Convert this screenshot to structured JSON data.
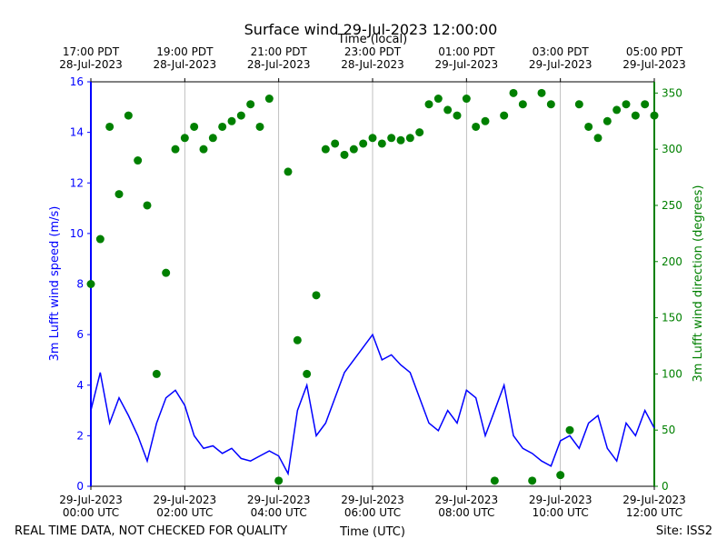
{
  "chart_data": {
    "type": "line-scatter",
    "title": "Surface wind 29-Jul-2023 12:00:00",
    "xlabel": "Time (UTC)",
    "top_xlabel": "Time (local)",
    "ylabel": "3m Lufft wind speed (m/s)",
    "y2label": "3m Lufft wind direction (degrees)",
    "footer_left": "REAL TIME DATA, NOT CHECKED FOR QUALITY",
    "footer_right": "Site: ISS2",
    "xlim": [
      0,
      12
    ],
    "xticks": [
      {
        "value": 0,
        "label": "29-Jul-2023\n00:00 UTC"
      },
      {
        "value": 2,
        "label": "29-Jul-2023\n02:00 UTC"
      },
      {
        "value": 4,
        "label": "29-Jul-2023\n04:00 UTC"
      },
      {
        "value": 6,
        "label": "29-Jul-2023\n06:00 UTC"
      },
      {
        "value": 8,
        "label": "29-Jul-2023\n08:00 UTC"
      },
      {
        "value": 10,
        "label": "29-Jul-2023\n10:00 UTC"
      },
      {
        "value": 12,
        "label": "29-Jul-2023\n12:00 UTC"
      }
    ],
    "top_xticks": [
      {
        "value": 0,
        "label": "17:00 PDT\n28-Jul-2023"
      },
      {
        "value": 2,
        "label": "19:00 PDT\n28-Jul-2023"
      },
      {
        "value": 4,
        "label": "21:00 PDT\n28-Jul-2023"
      },
      {
        "value": 6,
        "label": "23:00 PDT\n28-Jul-2023"
      },
      {
        "value": 8,
        "label": "01:00 PDT\n29-Jul-2023"
      },
      {
        "value": 10,
        "label": "03:00 PDT\n29-Jul-2023"
      },
      {
        "value": 12,
        "label": "05:00 PDT\n29-Jul-2023"
      }
    ],
    "ylim": [
      0,
      16
    ],
    "yticks": [
      0,
      2,
      4,
      6,
      8,
      10,
      12,
      14,
      16
    ],
    "y2lim": [
      0,
      360
    ],
    "y2ticks": [
      0,
      50,
      100,
      150,
      200,
      250,
      300,
      350
    ],
    "grid": true,
    "x": [
      0,
      0.2,
      0.4,
      0.6,
      0.8,
      1,
      1.2,
      1.4,
      1.6,
      1.8,
      2,
      2.2,
      2.4,
      2.6,
      2.8,
      3,
      3.2,
      3.4,
      3.6,
      3.8,
      4,
      4.2,
      4.4,
      4.6,
      4.8,
      5,
      5.2,
      5.4,
      5.6,
      5.8,
      6,
      6.2,
      6.4,
      6.6,
      6.8,
      7,
      7.2,
      7.4,
      7.6,
      7.8,
      8,
      8.2,
      8.4,
      8.6,
      8.8,
      9,
      9.2,
      9.4,
      9.6,
      9.8,
      10,
      10.2,
      10.4,
      10.6,
      10.8,
      11,
      11.2,
      11.4,
      11.6,
      11.8,
      12
    ],
    "series": [
      {
        "color": "#0000ff",
        "style": "line",
        "values": [
          3,
          4.5,
          2.5,
          3.5,
          2.8,
          2,
          1,
          2.5,
          3.5,
          3.8,
          3.2,
          2,
          1.5,
          1.6,
          1.3,
          1.5,
          1.1,
          1,
          1.2,
          1.4,
          1.2,
          0.5,
          3,
          4,
          2,
          2.5,
          3.5,
          4.5,
          5,
          5.5,
          6,
          5,
          5.2,
          4.8,
          4.5,
          3.5,
          2.5,
          2.2,
          3,
          2.5,
          3.8,
          3.5,
          2,
          3,
          4,
          2,
          1.5,
          1.3,
          1,
          0.8,
          1.8,
          2,
          1.5,
          2.5,
          2.8,
          1.5,
          1,
          2.5,
          2,
          3,
          2.3
        ]
      },
      {
        "color": "#008000",
        "style": "scatter",
        "axis": "y2",
        "values": [
          180,
          220,
          320,
          260,
          330,
          290,
          250,
          100,
          190,
          300,
          310,
          320,
          300,
          310,
          320,
          325,
          330,
          340,
          320,
          345,
          5,
          280,
          130,
          100,
          170,
          300,
          305,
          295,
          300,
          305,
          310,
          305,
          310,
          308,
          310,
          315,
          340,
          345,
          335,
          330,
          345,
          320,
          325,
          5,
          330,
          350,
          340,
          5,
          350,
          340,
          10,
          50,
          340,
          320,
          310,
          325,
          335,
          340,
          330,
          340,
          330
        ]
      }
    ]
  }
}
